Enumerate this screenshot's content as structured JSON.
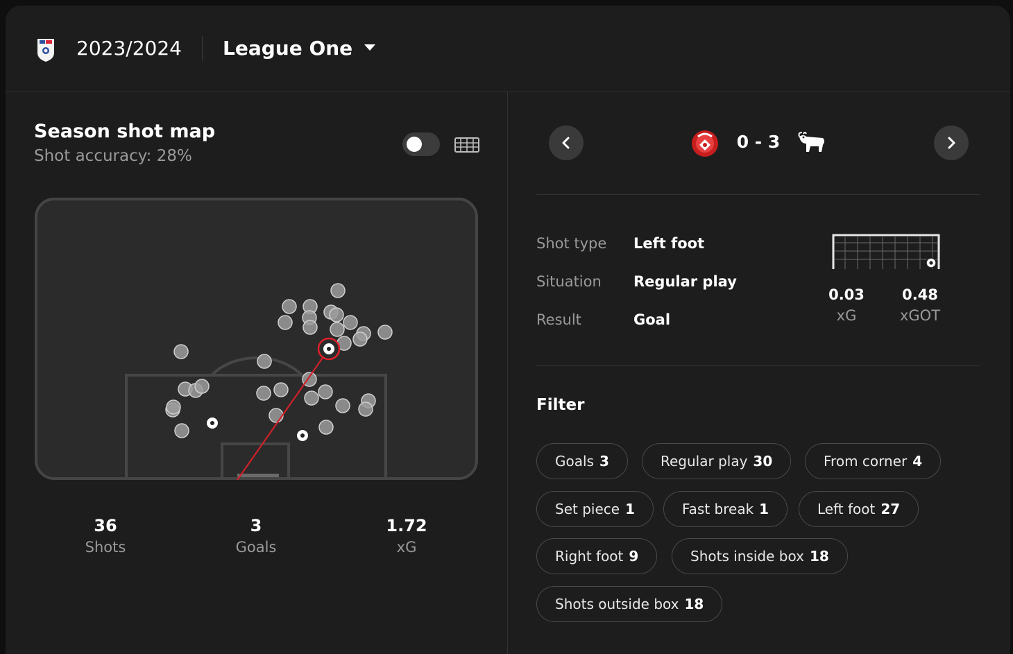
{
  "header": {
    "season": "2023/2024",
    "league": "League One"
  },
  "shot_map": {
    "title": "Season shot map",
    "subtitle": "Shot accuracy: 28%",
    "toggle_on": false
  },
  "stats": [
    {
      "value": "36",
      "label": "Shots"
    },
    {
      "value": "3",
      "label": "Goals"
    },
    {
      "value": "1.72",
      "label": "xG"
    }
  ],
  "match": {
    "score": "0 - 3"
  },
  "shot_detail": {
    "rows": [
      {
        "label": "Shot type",
        "value": "Left foot"
      },
      {
        "label": "Situation",
        "value": "Regular play"
      },
      {
        "label": "Result",
        "value": "Goal"
      }
    ],
    "xg": {
      "value": "0.03",
      "label": "xG"
    },
    "xgot": {
      "value": "0.48",
      "label": "xGOT"
    }
  },
  "filter": {
    "title": "Filter",
    "chips": [
      {
        "label": "Goals",
        "count": "3"
      },
      {
        "label": "Regular play",
        "count": "30"
      },
      {
        "label": "From corner",
        "count": "4"
      },
      {
        "label": "Set piece",
        "count": "1"
      },
      {
        "label": "Fast break",
        "count": "1"
      },
      {
        "label": "Left foot",
        "count": "27"
      },
      {
        "label": "Right foot",
        "count": "9"
      },
      {
        "label": "Shots inside box",
        "count": "18"
      },
      {
        "label": "Shots outside box",
        "count": "18"
      }
    ]
  },
  "colors": {
    "background": "#1d1d1d",
    "accent_red": "#e0202a",
    "muted_text": "#9a9a9a",
    "shot_marker": "#9b9b9b"
  },
  "icons": [
    "league-crest-icon",
    "dropdown-caret-icon",
    "goal-view-icon",
    "chevron-left-icon",
    "chevron-right-icon",
    "home-team-crest-icon",
    "away-team-crest-icon",
    "football-icon"
  ]
}
